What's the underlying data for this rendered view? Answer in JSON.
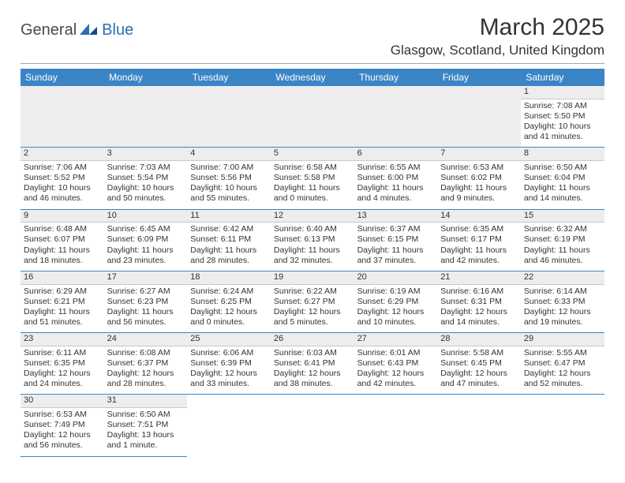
{
  "colors": {
    "header_bg": "#3b85c6",
    "header_text": "#ffffff",
    "daynum_bg": "#ededed",
    "daynum_border": "#c9c9c9",
    "row_border": "#3b85c6",
    "text": "#333333",
    "logo_gray": "#4a4a4a",
    "logo_blue": "#2a6fb4"
  },
  "logo": {
    "general": "General",
    "blue": "Blue"
  },
  "title": "March 2025",
  "location": "Glasgow, Scotland, United Kingdom",
  "weekdays": [
    "Sunday",
    "Monday",
    "Tuesday",
    "Wednesday",
    "Thursday",
    "Friday",
    "Saturday"
  ],
  "layout": {
    "first_day_column": 6,
    "days_in_month": 31
  },
  "days": {
    "1": {
      "sunrise": "7:08 AM",
      "sunset": "5:50 PM",
      "daylight": "10 hours and 41 minutes."
    },
    "2": {
      "sunrise": "7:06 AM",
      "sunset": "5:52 PM",
      "daylight": "10 hours and 46 minutes."
    },
    "3": {
      "sunrise": "7:03 AM",
      "sunset": "5:54 PM",
      "daylight": "10 hours and 50 minutes."
    },
    "4": {
      "sunrise": "7:00 AM",
      "sunset": "5:56 PM",
      "daylight": "10 hours and 55 minutes."
    },
    "5": {
      "sunrise": "6:58 AM",
      "sunset": "5:58 PM",
      "daylight": "11 hours and 0 minutes."
    },
    "6": {
      "sunrise": "6:55 AM",
      "sunset": "6:00 PM",
      "daylight": "11 hours and 4 minutes."
    },
    "7": {
      "sunrise": "6:53 AM",
      "sunset": "6:02 PM",
      "daylight": "11 hours and 9 minutes."
    },
    "8": {
      "sunrise": "6:50 AM",
      "sunset": "6:04 PM",
      "daylight": "11 hours and 14 minutes."
    },
    "9": {
      "sunrise": "6:48 AM",
      "sunset": "6:07 PM",
      "daylight": "11 hours and 18 minutes."
    },
    "10": {
      "sunrise": "6:45 AM",
      "sunset": "6:09 PM",
      "daylight": "11 hours and 23 minutes."
    },
    "11": {
      "sunrise": "6:42 AM",
      "sunset": "6:11 PM",
      "daylight": "11 hours and 28 minutes."
    },
    "12": {
      "sunrise": "6:40 AM",
      "sunset": "6:13 PM",
      "daylight": "11 hours and 32 minutes."
    },
    "13": {
      "sunrise": "6:37 AM",
      "sunset": "6:15 PM",
      "daylight": "11 hours and 37 minutes."
    },
    "14": {
      "sunrise": "6:35 AM",
      "sunset": "6:17 PM",
      "daylight": "11 hours and 42 minutes."
    },
    "15": {
      "sunrise": "6:32 AM",
      "sunset": "6:19 PM",
      "daylight": "11 hours and 46 minutes."
    },
    "16": {
      "sunrise": "6:29 AM",
      "sunset": "6:21 PM",
      "daylight": "11 hours and 51 minutes."
    },
    "17": {
      "sunrise": "6:27 AM",
      "sunset": "6:23 PM",
      "daylight": "11 hours and 56 minutes."
    },
    "18": {
      "sunrise": "6:24 AM",
      "sunset": "6:25 PM",
      "daylight": "12 hours and 0 minutes."
    },
    "19": {
      "sunrise": "6:22 AM",
      "sunset": "6:27 PM",
      "daylight": "12 hours and 5 minutes."
    },
    "20": {
      "sunrise": "6:19 AM",
      "sunset": "6:29 PM",
      "daylight": "12 hours and 10 minutes."
    },
    "21": {
      "sunrise": "6:16 AM",
      "sunset": "6:31 PM",
      "daylight": "12 hours and 14 minutes."
    },
    "22": {
      "sunrise": "6:14 AM",
      "sunset": "6:33 PM",
      "daylight": "12 hours and 19 minutes."
    },
    "23": {
      "sunrise": "6:11 AM",
      "sunset": "6:35 PM",
      "daylight": "12 hours and 24 minutes."
    },
    "24": {
      "sunrise": "6:08 AM",
      "sunset": "6:37 PM",
      "daylight": "12 hours and 28 minutes."
    },
    "25": {
      "sunrise": "6:06 AM",
      "sunset": "6:39 PM",
      "daylight": "12 hours and 33 minutes."
    },
    "26": {
      "sunrise": "6:03 AM",
      "sunset": "6:41 PM",
      "daylight": "12 hours and 38 minutes."
    },
    "27": {
      "sunrise": "6:01 AM",
      "sunset": "6:43 PM",
      "daylight": "12 hours and 42 minutes."
    },
    "28": {
      "sunrise": "5:58 AM",
      "sunset": "6:45 PM",
      "daylight": "12 hours and 47 minutes."
    },
    "29": {
      "sunrise": "5:55 AM",
      "sunset": "6:47 PM",
      "daylight": "12 hours and 52 minutes."
    },
    "30": {
      "sunrise": "6:53 AM",
      "sunset": "7:49 PM",
      "daylight": "12 hours and 56 minutes."
    },
    "31": {
      "sunrise": "6:50 AM",
      "sunset": "7:51 PM",
      "daylight": "13 hours and 1 minute."
    }
  },
  "labels": {
    "sunrise": "Sunrise: ",
    "sunset": "Sunset: ",
    "daylight": "Daylight: "
  }
}
